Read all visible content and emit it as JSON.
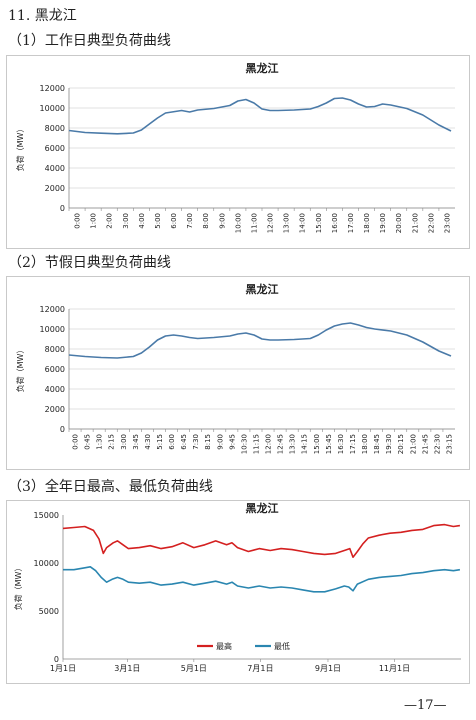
{
  "section_title": "11. 黑龙江",
  "headings": {
    "h1": "（1）工作日典型负荷曲线",
    "h2": "（2）节假日典型负荷曲线",
    "h3": "（3）全年日最高、最低负荷曲线"
  },
  "page_number": "—17—",
  "colors": {
    "line": "#4a7aa8",
    "high": "#d42020",
    "low": "#2a86b0"
  },
  "chart_data": [
    {
      "type": "line",
      "title": "黑龙江",
      "ylabel": "负荷（MW）",
      "ylim": [
        0,
        12000
      ],
      "yticks": [
        "0",
        "2000",
        "4000",
        "6000",
        "8000",
        "10000",
        "12000"
      ],
      "grid": true,
      "categories": [
        "0:00",
        "1:00",
        "2:00",
        "3:00",
        "4:00",
        "5:00",
        "6:00",
        "7:00",
        "8:00",
        "9:00",
        "10:00",
        "11:00",
        "12:00",
        "13:00",
        "14:00",
        "15:00",
        "16:00",
        "17:00",
        "18:00",
        "19:00",
        "20:00",
        "21:00",
        "22:00",
        "23:00"
      ],
      "series": [
        {
          "values": [
            [
              0,
              7750
            ],
            [
              1,
              7550
            ],
            [
              2,
              7480
            ],
            [
              3,
              7420
            ],
            [
              4,
              7500
            ],
            [
              4.5,
              7800
            ],
            [
              5,
              8400
            ],
            [
              5.5,
              9000
            ],
            [
              6,
              9500
            ],
            [
              7,
              9750
            ],
            [
              7.5,
              9600
            ],
            [
              8,
              9800
            ],
            [
              9,
              9950
            ],
            [
              10,
              10250
            ],
            [
              10.5,
              10700
            ],
            [
              11,
              10850
            ],
            [
              11.5,
              10500
            ],
            [
              12,
              9900
            ],
            [
              12.5,
              9750
            ],
            [
              13,
              9750
            ],
            [
              14,
              9800
            ],
            [
              15,
              9900
            ],
            [
              15.5,
              10150
            ],
            [
              16,
              10500
            ],
            [
              16.5,
              10950
            ],
            [
              17,
              11000
            ],
            [
              17.5,
              10800
            ],
            [
              18,
              10400
            ],
            [
              18.5,
              10100
            ],
            [
              19,
              10150
            ],
            [
              19.5,
              10400
            ],
            [
              20,
              10300
            ],
            [
              21,
              9950
            ],
            [
              22,
              9300
            ],
            [
              23,
              8300
            ],
            [
              23.75,
              7700
            ]
          ]
        }
      ]
    },
    {
      "type": "line",
      "title": "黑龙江",
      "ylabel": "负荷（MW）",
      "ylim": [
        0,
        12000
      ],
      "yticks": [
        "0",
        "2000",
        "4000",
        "6000",
        "8000",
        "10000",
        "12000"
      ],
      "grid": true,
      "categories": [
        "0:00",
        "0:45",
        "1:30",
        "2:15",
        "3:00",
        "3:45",
        "4:30",
        "5:15",
        "6:00",
        "6:45",
        "7:30",
        "8:15",
        "9:00",
        "9:45",
        "10:30",
        "11:15",
        "12:00",
        "12:45",
        "13:30",
        "14:15",
        "15:00",
        "15:45",
        "16:30",
        "17:15",
        "18:00",
        "18:45",
        "19:30",
        "20:15",
        "21:00",
        "21:45",
        "22:30",
        "23:15"
      ],
      "series": [
        {
          "values": [
            [
              0,
              7400
            ],
            [
              1,
              7250
            ],
            [
              2,
              7150
            ],
            [
              3,
              7100
            ],
            [
              4,
              7250
            ],
            [
              4.5,
              7600
            ],
            [
              5,
              8200
            ],
            [
              5.5,
              8900
            ],
            [
              6,
              9300
            ],
            [
              6.5,
              9400
            ],
            [
              7,
              9300
            ],
            [
              7.5,
              9150
            ],
            [
              8,
              9050
            ],
            [
              9,
              9150
            ],
            [
              10,
              9300
            ],
            [
              10.5,
              9500
            ],
            [
              11,
              9600
            ],
            [
              11.5,
              9400
            ],
            [
              12,
              9000
            ],
            [
              12.5,
              8900
            ],
            [
              13,
              8900
            ],
            [
              14,
              8950
            ],
            [
              15,
              9050
            ],
            [
              15.5,
              9400
            ],
            [
              16,
              9900
            ],
            [
              16.5,
              10300
            ],
            [
              17,
              10500
            ],
            [
              17.5,
              10600
            ],
            [
              18,
              10400
            ],
            [
              18.5,
              10150
            ],
            [
              19,
              10000
            ],
            [
              20,
              9800
            ],
            [
              21,
              9400
            ],
            [
              22,
              8700
            ],
            [
              23,
              7800
            ],
            [
              23.75,
              7300
            ]
          ]
        }
      ]
    },
    {
      "type": "line",
      "title": "黑龙江",
      "ylabel": "负荷（MW）",
      "ylim": [
        0,
        15000
      ],
      "yticks": [
        "0",
        "5000",
        "10000",
        "15000"
      ],
      "grid": false,
      "legend": "bottom-center",
      "categories": [
        "1月1日",
        "3月1日",
        "5月1日",
        "7月1日",
        "9月1日",
        "11月1日"
      ],
      "category_days": [
        0,
        59,
        120,
        181,
        243,
        304
      ],
      "series": [
        {
          "name": "最高",
          "values": [
            [
              0,
              13600
            ],
            [
              10,
              13700
            ],
            [
              20,
              13800
            ],
            [
              28,
              13400
            ],
            [
              33,
              12500
            ],
            [
              37,
              11000
            ],
            [
              40,
              11600
            ],
            [
              46,
              12100
            ],
            [
              50,
              12300
            ],
            [
              55,
              11900
            ],
            [
              60,
              11500
            ],
            [
              70,
              11600
            ],
            [
              80,
              11800
            ],
            [
              90,
              11500
            ],
            [
              100,
              11700
            ],
            [
              110,
              12100
            ],
            [
              120,
              11600
            ],
            [
              130,
              11900
            ],
            [
              140,
              12300
            ],
            [
              150,
              11900
            ],
            [
              155,
              12100
            ],
            [
              160,
              11600
            ],
            [
              170,
              11200
            ],
            [
              180,
              11500
            ],
            [
              190,
              11300
            ],
            [
              200,
              11500
            ],
            [
              210,
              11400
            ],
            [
              220,
              11200
            ],
            [
              230,
              11000
            ],
            [
              240,
              10900
            ],
            [
              250,
              11000
            ],
            [
              258,
              11300
            ],
            [
              263,
              11500
            ],
            [
              266,
              10600
            ],
            [
              270,
              11200
            ],
            [
              275,
              12000
            ],
            [
              280,
              12600
            ],
            [
              290,
              12900
            ],
            [
              300,
              13100
            ],
            [
              310,
              13200
            ],
            [
              320,
              13400
            ],
            [
              330,
              13500
            ],
            [
              340,
              13900
            ],
            [
              350,
              14000
            ],
            [
              358,
              13800
            ],
            [
              364,
              13900
            ]
          ]
        },
        {
          "name": "最低",
          "values": [
            [
              0,
              9300
            ],
            [
              10,
              9300
            ],
            [
              20,
              9500
            ],
            [
              25,
              9600
            ],
            [
              30,
              9200
            ],
            [
              35,
              8500
            ],
            [
              40,
              8000
            ],
            [
              45,
              8300
            ],
            [
              50,
              8500
            ],
            [
              55,
              8300
            ],
            [
              60,
              8000
            ],
            [
              70,
              7900
            ],
            [
              80,
              8000
            ],
            [
              90,
              7700
            ],
            [
              100,
              7800
            ],
            [
              110,
              8000
            ],
            [
              120,
              7700
            ],
            [
              130,
              7900
            ],
            [
              140,
              8100
            ],
            [
              150,
              7800
            ],
            [
              155,
              8000
            ],
            [
              160,
              7600
            ],
            [
              170,
              7400
            ],
            [
              180,
              7600
            ],
            [
              190,
              7400
            ],
            [
              200,
              7500
            ],
            [
              210,
              7400
            ],
            [
              220,
              7200
            ],
            [
              230,
              7000
            ],
            [
              240,
              7000
            ],
            [
              250,
              7300
            ],
            [
              258,
              7600
            ],
            [
              262,
              7500
            ],
            [
              266,
              7100
            ],
            [
              270,
              7800
            ],
            [
              280,
              8300
            ],
            [
              290,
              8500
            ],
            [
              300,
              8600
            ],
            [
              310,
              8700
            ],
            [
              320,
              8900
            ],
            [
              330,
              9000
            ],
            [
              340,
              9200
            ],
            [
              350,
              9300
            ],
            [
              358,
              9200
            ],
            [
              364,
              9300
            ]
          ]
        }
      ]
    }
  ]
}
